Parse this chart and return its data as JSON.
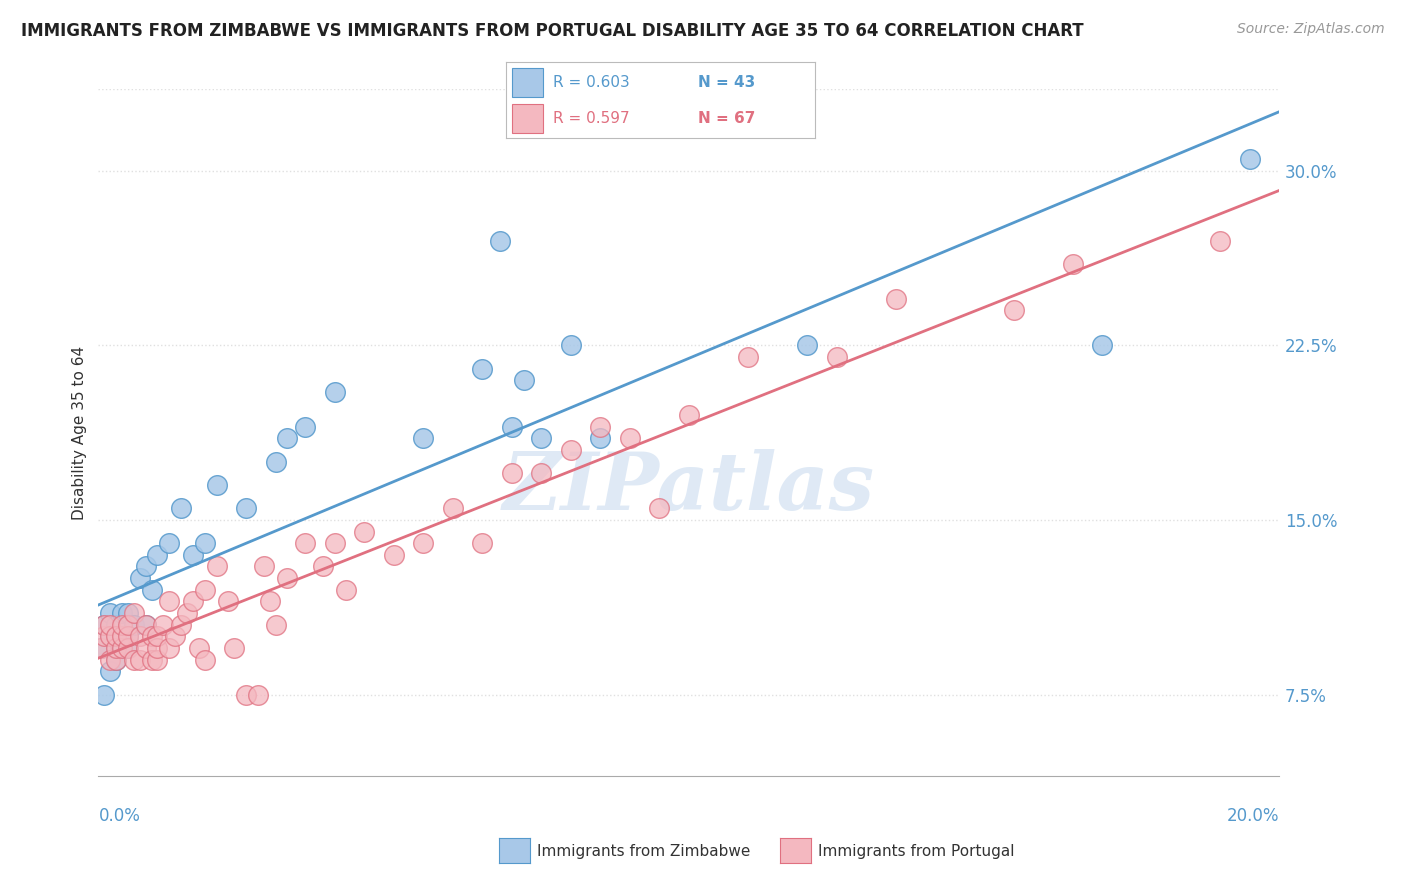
{
  "title": "IMMIGRANTS FROM ZIMBABWE VS IMMIGRANTS FROM PORTUGAL DISABILITY AGE 35 TO 64 CORRELATION CHART",
  "source": "Source: ZipAtlas.com",
  "ylabel": "Disability Age 35 to 64",
  "ytick_vals": [
    0.075,
    0.15,
    0.225,
    0.3
  ],
  "ytick_labels": [
    "7.5%",
    "15.0%",
    "22.5%",
    "30.0%"
  ],
  "xlim": [
    0.0,
    0.2
  ],
  "ylim": [
    0.04,
    0.335
  ],
  "zimbabwe_color": "#a8c8e8",
  "zimbabwe_edge": "#5599cc",
  "portugal_color": "#f4b8c0",
  "portugal_edge": "#e07080",
  "line_zimbabwe": "#5599cc",
  "line_portugal": "#e07080",
  "legend_r_zimbabwe": "R = 0.603",
  "legend_n_zimbabwe": "N = 43",
  "legend_r_portugal": "R = 0.597",
  "legend_n_portugal": "N = 67",
  "zimbabwe_x": [
    0.0005,
    0.001,
    0.001,
    0.002,
    0.002,
    0.002,
    0.003,
    0.003,
    0.003,
    0.003,
    0.004,
    0.004,
    0.004,
    0.005,
    0.005,
    0.005,
    0.006,
    0.007,
    0.008,
    0.008,
    0.009,
    0.01,
    0.012,
    0.014,
    0.016,
    0.018,
    0.02,
    0.025,
    0.03,
    0.032,
    0.035,
    0.04,
    0.055,
    0.065,
    0.068,
    0.07,
    0.072,
    0.075,
    0.08,
    0.085,
    0.12,
    0.17,
    0.195
  ],
  "zimbabwe_y": [
    0.095,
    0.075,
    0.105,
    0.085,
    0.1,
    0.11,
    0.09,
    0.095,
    0.1,
    0.105,
    0.095,
    0.1,
    0.11,
    0.095,
    0.1,
    0.11,
    0.105,
    0.125,
    0.105,
    0.13,
    0.12,
    0.135,
    0.14,
    0.155,
    0.135,
    0.14,
    0.165,
    0.155,
    0.175,
    0.185,
    0.19,
    0.205,
    0.185,
    0.215,
    0.27,
    0.19,
    0.21,
    0.185,
    0.225,
    0.185,
    0.225,
    0.225,
    0.305
  ],
  "portugal_x": [
    0.0005,
    0.001,
    0.001,
    0.002,
    0.002,
    0.002,
    0.003,
    0.003,
    0.003,
    0.004,
    0.004,
    0.004,
    0.005,
    0.005,
    0.005,
    0.006,
    0.006,
    0.007,
    0.007,
    0.008,
    0.008,
    0.009,
    0.009,
    0.01,
    0.01,
    0.01,
    0.011,
    0.012,
    0.012,
    0.013,
    0.014,
    0.015,
    0.016,
    0.017,
    0.018,
    0.018,
    0.02,
    0.022,
    0.023,
    0.025,
    0.027,
    0.028,
    0.029,
    0.03,
    0.032,
    0.035,
    0.038,
    0.04,
    0.042,
    0.045,
    0.05,
    0.055,
    0.06,
    0.065,
    0.07,
    0.075,
    0.08,
    0.085,
    0.09,
    0.095,
    0.1,
    0.11,
    0.125,
    0.135,
    0.155,
    0.165,
    0.19
  ],
  "portugal_y": [
    0.095,
    0.1,
    0.105,
    0.09,
    0.1,
    0.105,
    0.09,
    0.095,
    0.1,
    0.095,
    0.1,
    0.105,
    0.095,
    0.1,
    0.105,
    0.09,
    0.11,
    0.09,
    0.1,
    0.095,
    0.105,
    0.09,
    0.1,
    0.09,
    0.095,
    0.1,
    0.105,
    0.095,
    0.115,
    0.1,
    0.105,
    0.11,
    0.115,
    0.095,
    0.09,
    0.12,
    0.13,
    0.115,
    0.095,
    0.075,
    0.075,
    0.13,
    0.115,
    0.105,
    0.125,
    0.14,
    0.13,
    0.14,
    0.12,
    0.145,
    0.135,
    0.14,
    0.155,
    0.14,
    0.17,
    0.17,
    0.18,
    0.19,
    0.185,
    0.155,
    0.195,
    0.22,
    0.22,
    0.245,
    0.24,
    0.26,
    0.27
  ],
  "watermark": "ZIPatlas",
  "bg_color": "#ffffff",
  "grid_color": "#e0e0e0",
  "grid_linestyle": "dotted"
}
